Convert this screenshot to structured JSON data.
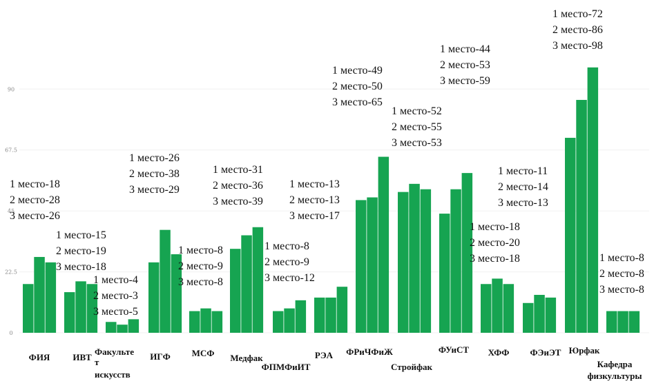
{
  "chart_data": {
    "type": "bar",
    "ylim": [
      0,
      90
    ],
    "yticks": [
      "0",
      "22.5",
      "45",
      "67.5",
      "90"
    ],
    "grid": false,
    "categories": [
      "ФИЯ",
      "ИВТ",
      "Факультет искусств",
      "ИГФ",
      "МСФ",
      "Медфак",
      "ФПМФиИТ",
      "РЭА",
      "ФРиЧФиЖ",
      "Стройфак",
      "ФУиСТ",
      "ХФФ",
      "ФЭиЭТ",
      "Юрфак",
      "Кафедра физкультуры"
    ],
    "category_label_lines": [
      [
        "ФИЯ"
      ],
      [
        "ИВТ"
      ],
      [
        "Факульте",
        "т",
        "искусств"
      ],
      [
        "ИГФ"
      ],
      [
        "МСФ"
      ],
      [
        "Медфак"
      ],
      [
        "ФПМФиИТ"
      ],
      [
        "РЭА"
      ],
      [
        "ФРиЧФиЖ"
      ],
      [
        "Стройфак"
      ],
      [
        "ФУиСТ"
      ],
      [
        "ХФФ"
      ],
      [
        "ФЭиЭТ"
      ],
      [
        "Юрфак"
      ],
      [
        "Кафедра",
        "физкультуры"
      ]
    ],
    "series": [
      {
        "name": "1 место",
        "values": [
          18,
          15,
          4,
          26,
          8,
          31,
          8,
          13,
          49,
          52,
          44,
          18,
          11,
          72,
          8
        ]
      },
      {
        "name": "2 место",
        "values": [
          28,
          19,
          3,
          38,
          9,
          36,
          9,
          13,
          50,
          55,
          53,
          20,
          14,
          86,
          8
        ]
      },
      {
        "name": "3 место",
        "values": [
          26,
          18,
          5,
          29,
          8,
          39,
          12,
          17,
          65,
          53,
          59,
          18,
          13,
          98,
          8
        ]
      }
    ],
    "annotations": [
      [
        "1 место-18",
        "2 место-28",
        "3 место-26"
      ],
      [
        "1 место-15",
        "2 место-19",
        "3 место-18"
      ],
      [
        "1 место-4",
        "2 место-3",
        "3 место-5"
      ],
      [
        "1 место-26",
        "2 место-38",
        "3 место-29"
      ],
      [
        "1 место-8",
        "2 место-9",
        "3 место-8"
      ],
      [
        "1 место-31",
        "2 место-36",
        "3 место-39"
      ],
      [
        "1 место-8",
        "2 место-9",
        "3 место-12"
      ],
      [
        "1 место-13",
        "2 место-13",
        "3 место-17"
      ],
      [
        "1 место-49",
        "2 место-50",
        "3 место-65"
      ],
      [
        "1 место-52",
        "2 место-55",
        "3 место-53"
      ],
      [
        "1 место-44",
        "2 место-53",
        "3 место-59"
      ],
      [
        "1 место-18",
        "2 место-20",
        "3 место-18"
      ],
      [
        "1 место-11",
        "2 место-14",
        "3 место-13"
      ],
      [
        "1 место-72",
        "2 место-86",
        "3 место-98"
      ],
      [
        "1 место-8",
        "2 место-8",
        "3 место-8"
      ]
    ],
    "colors": {
      "bar": "#16a451"
    }
  }
}
